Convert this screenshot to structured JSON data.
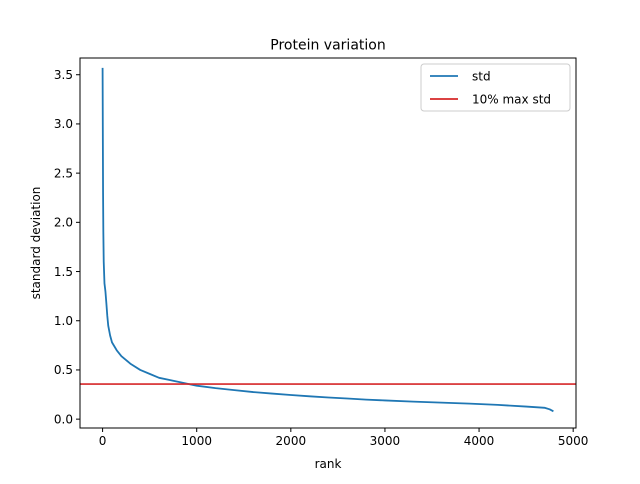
{
  "chart_data": {
    "type": "line",
    "title": "Protein variation",
    "xlabel": "rank",
    "ylabel": "standard deviation",
    "xlim": [
      -240,
      5030
    ],
    "ylim": [
      -0.09,
      3.67
    ],
    "grid": false,
    "legend_position": "upper right",
    "x_ticks": [
      {
        "value": 0,
        "label": "0"
      },
      {
        "value": 1000,
        "label": "1000"
      },
      {
        "value": 2000,
        "label": "2000"
      },
      {
        "value": 3000,
        "label": "3000"
      },
      {
        "value": 4000,
        "label": "4000"
      },
      {
        "value": 5000,
        "label": "5000"
      }
    ],
    "y_ticks": [
      {
        "value": 0.0,
        "label": "0.0"
      },
      {
        "value": 0.5,
        "label": "0.5"
      },
      {
        "value": 1.0,
        "label": "1.0"
      },
      {
        "value": 1.5,
        "label": "1.5"
      },
      {
        "value": 2.0,
        "label": "2.0"
      },
      {
        "value": 2.5,
        "label": "2.5"
      },
      {
        "value": 3.0,
        "label": "3.0"
      },
      {
        "value": 3.5,
        "label": "3.5"
      }
    ],
    "series": [
      {
        "name": "std",
        "color": "#1f77b4",
        "points": [
          {
            "x": 0,
            "y": 3.57
          },
          {
            "x": 3,
            "y": 2.8
          },
          {
            "x": 5,
            "y": 2.3
          },
          {
            "x": 8,
            "y": 1.9
          },
          {
            "x": 12,
            "y": 1.6
          },
          {
            "x": 20,
            "y": 1.38
          },
          {
            "x": 30,
            "y": 1.3
          },
          {
            "x": 40,
            "y": 1.18
          },
          {
            "x": 50,
            "y": 1.05
          },
          {
            "x": 60,
            "y": 0.95
          },
          {
            "x": 80,
            "y": 0.85
          },
          {
            "x": 100,
            "y": 0.78
          },
          {
            "x": 150,
            "y": 0.7
          },
          {
            "x": 200,
            "y": 0.64
          },
          {
            "x": 300,
            "y": 0.56
          },
          {
            "x": 400,
            "y": 0.5
          },
          {
            "x": 500,
            "y": 0.46
          },
          {
            "x": 600,
            "y": 0.42
          },
          {
            "x": 700,
            "y": 0.4
          },
          {
            "x": 800,
            "y": 0.38
          },
          {
            "x": 900,
            "y": 0.36
          },
          {
            "x": 1000,
            "y": 0.34
          },
          {
            "x": 1200,
            "y": 0.315
          },
          {
            "x": 1400,
            "y": 0.295
          },
          {
            "x": 1600,
            "y": 0.275
          },
          {
            "x": 1800,
            "y": 0.26
          },
          {
            "x": 2000,
            "y": 0.245
          },
          {
            "x": 2200,
            "y": 0.232
          },
          {
            "x": 2400,
            "y": 0.22
          },
          {
            "x": 2600,
            "y": 0.21
          },
          {
            "x": 2800,
            "y": 0.198
          },
          {
            "x": 3000,
            "y": 0.19
          },
          {
            "x": 3300,
            "y": 0.178
          },
          {
            "x": 3600,
            "y": 0.168
          },
          {
            "x": 3900,
            "y": 0.158
          },
          {
            "x": 4200,
            "y": 0.145
          },
          {
            "x": 4500,
            "y": 0.128
          },
          {
            "x": 4700,
            "y": 0.115
          },
          {
            "x": 4750,
            "y": 0.1
          },
          {
            "x": 4790,
            "y": 0.08
          }
        ]
      }
    ],
    "reference_line": {
      "name": "10% max std",
      "y": 0.357,
      "color": "#d62728"
    },
    "legend": [
      {
        "label": "std",
        "color": "#1f77b4"
      },
      {
        "label": "10% max std",
        "color": "#d62728"
      }
    ]
  }
}
